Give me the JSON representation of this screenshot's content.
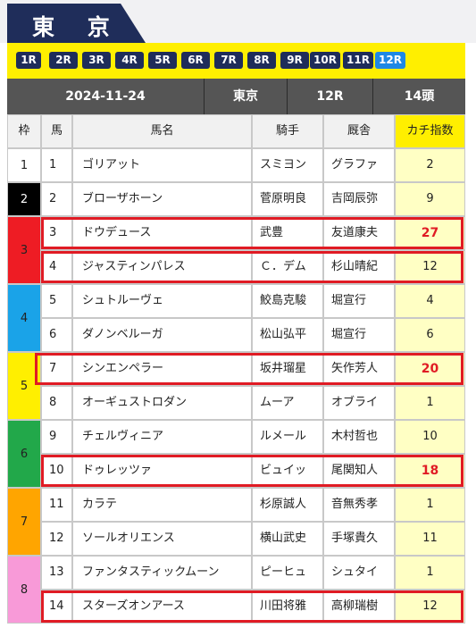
{
  "venue_title": "東 京",
  "races": [
    {
      "label": "1R",
      "active": false
    },
    {
      "label": "2R",
      "active": false
    },
    {
      "label": "3R",
      "active": false
    },
    {
      "label": "4R",
      "active": false
    },
    {
      "label": "5R",
      "active": false
    },
    {
      "label": "6R",
      "active": false
    },
    {
      "label": "7R",
      "active": false
    },
    {
      "label": "8R",
      "active": false
    },
    {
      "label": "9R",
      "active": false
    },
    {
      "label": "10R",
      "active": false
    },
    {
      "label": "11R",
      "active": false
    },
    {
      "label": "12R",
      "active": true
    }
  ],
  "info": {
    "date": "2024-11-24",
    "venue": "東京",
    "race": "12R",
    "runners": "14頭"
  },
  "headers": {
    "waku": "枠",
    "umaban": "馬",
    "name": "馬名",
    "jockey": "騎手",
    "trainer": "厩舎",
    "index": "カチ指数"
  },
  "colors": {
    "navy": "#1f2d5a",
    "yellow_bar": "#ffef00",
    "active_race": "#1e88e5",
    "highlight": "#e01b24",
    "index_column": "#ffffc4"
  },
  "waku_groups": [
    {
      "label": "1",
      "color": "#ffffff",
      "text_color": "#222222"
    },
    {
      "label": "2",
      "color": "#000000",
      "text_color": "#ffffff"
    },
    {
      "label": "3",
      "color": "#ee1c24",
      "text_color": "#222222"
    },
    {
      "label": "4",
      "color": "#1aa3e8",
      "text_color": "#222222"
    },
    {
      "label": "5",
      "color": "#ffef00",
      "text_color": "#222222"
    },
    {
      "label": "6",
      "color": "#22a84a",
      "text_color": "#222222"
    },
    {
      "label": "7",
      "color": "#ffa500",
      "text_color": "#222222"
    },
    {
      "label": "8",
      "color": "#f89ad8",
      "text_color": "#222222"
    }
  ],
  "horses": [
    {
      "waku": 1,
      "umaban": "1",
      "name": "ゴリアット",
      "jockey": "スミヨン",
      "trainer": "グラファ",
      "index": "2",
      "highlight": false
    },
    {
      "waku": 2,
      "umaban": "2",
      "name": "ブローザホーン",
      "jockey": "菅原明良",
      "trainer": "吉岡辰弥",
      "index": "9",
      "highlight": false
    },
    {
      "waku": 3,
      "umaban": "3",
      "name": "ドウデュース",
      "jockey": "武豊",
      "trainer": "友道康夫",
      "index": "27",
      "highlight": true
    },
    {
      "waku": 3,
      "umaban": "4",
      "name": "ジャスティンパレス",
      "jockey": "Ｃ．デム",
      "trainer": "杉山晴紀",
      "index": "12",
      "highlight": true
    },
    {
      "waku": 4,
      "umaban": "5",
      "name": "シュトルーヴェ",
      "jockey": "鮫島克駿",
      "trainer": "堀宣行",
      "index": "4",
      "highlight": false
    },
    {
      "waku": 4,
      "umaban": "6",
      "name": "ダノンベルーガ",
      "jockey": "松山弘平",
      "trainer": "堀宣行",
      "index": "6",
      "highlight": false
    },
    {
      "waku": 5,
      "umaban": "7",
      "name": "シンエンペラー",
      "jockey": "坂井瑠星",
      "trainer": "矢作芳人",
      "index": "20",
      "highlight": true
    },
    {
      "waku": 5,
      "umaban": "8",
      "name": "オーギュストロダン",
      "jockey": "ムーア",
      "trainer": "オブライ",
      "index": "1",
      "highlight": false
    },
    {
      "waku": 6,
      "umaban": "9",
      "name": "チェルヴィニア",
      "jockey": "ルメール",
      "trainer": "木村哲也",
      "index": "10",
      "highlight": false
    },
    {
      "waku": 6,
      "umaban": "10",
      "name": "ドゥレッツァ",
      "jockey": "ビュイッ",
      "trainer": "尾関知人",
      "index": "18",
      "highlight": true
    },
    {
      "waku": 7,
      "umaban": "11",
      "name": "カラテ",
      "jockey": "杉原誠人",
      "trainer": "音無秀孝",
      "index": "1",
      "highlight": false
    },
    {
      "waku": 7,
      "umaban": "12",
      "name": "ソールオリエンス",
      "jockey": "横山武史",
      "trainer": "手塚貴久",
      "index": "11",
      "highlight": false
    },
    {
      "waku": 8,
      "umaban": "13",
      "name": "ファンタスティックムーン",
      "jockey": "ピーヒュ",
      "trainer": "シュタイ",
      "index": "1",
      "highlight": false
    },
    {
      "waku": 8,
      "umaban": "14",
      "name": "スターズオンアース",
      "jockey": "川田将雅",
      "trainer": "高柳瑞樹",
      "index": "12",
      "highlight": true
    }
  ]
}
